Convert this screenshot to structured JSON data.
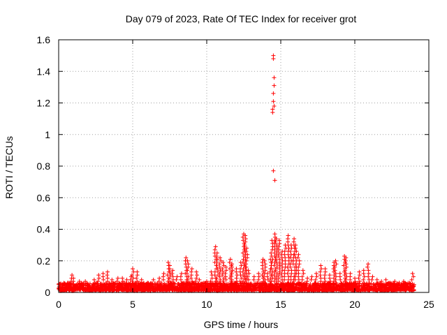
{
  "chart_data": {
    "type": "scatter",
    "title": "Day 079 of 2023, Rate Of TEC Index for receiver grot",
    "xlabel": "GPS time / hours",
    "ylabel": "ROTI / TECUs",
    "xlim": [
      0,
      25
    ],
    "ylim": [
      0,
      1.6
    ],
    "x_ticks": [
      0,
      5,
      10,
      15,
      20,
      25
    ],
    "y_ticks": [
      0,
      0.2,
      0.4,
      0.6,
      0.8,
      1,
      1.2,
      1.4,
      1.6
    ],
    "x_tick_labels": [
      "0",
      "5",
      "10",
      "15",
      "20",
      "25"
    ],
    "y_tick_labels": [
      "0",
      "0.2",
      "0.4",
      "0.6",
      "0.8",
      "1",
      "1.2",
      "1.4",
      "1.6"
    ],
    "grid": true,
    "marker": "+",
    "marker_color": "#ff0000",
    "baseline_band": {
      "x_range": [
        0,
        24
      ],
      "y_range": [
        0.01,
        0.06
      ],
      "description_hidden": true
    },
    "series": [
      {
        "values": [
          [
            0.05,
            0.04
          ],
          [
            0.3,
            0.05
          ],
          [
            0.6,
            0.06
          ],
          [
            0.9,
            0.11
          ],
          [
            1.0,
            0.09
          ],
          [
            1.4,
            0.07
          ],
          [
            1.8,
            0.07
          ],
          [
            2.4,
            0.08
          ],
          [
            2.7,
            0.11
          ],
          [
            3.0,
            0.12
          ],
          [
            3.3,
            0.13
          ],
          [
            3.6,
            0.08
          ],
          [
            4.0,
            0.09
          ],
          [
            4.3,
            0.09
          ],
          [
            4.6,
            0.08
          ],
          [
            4.9,
            0.1
          ],
          [
            5.0,
            0.15
          ],
          [
            5.3,
            0.13
          ],
          [
            5.6,
            0.08
          ],
          [
            6.0,
            0.06
          ],
          [
            6.4,
            0.08
          ],
          [
            6.8,
            0.09
          ],
          [
            7.1,
            0.12
          ],
          [
            7.4,
            0.19
          ],
          [
            7.5,
            0.17
          ],
          [
            7.7,
            0.14
          ],
          [
            8.0,
            0.1
          ],
          [
            8.3,
            0.12
          ],
          [
            8.6,
            0.22
          ],
          [
            8.7,
            0.2
          ],
          [
            9.0,
            0.15
          ],
          [
            9.3,
            0.13
          ],
          [
            9.5,
            0.08
          ],
          [
            9.8,
            0.06
          ],
          [
            10.0,
            0.07
          ],
          [
            10.3,
            0.13
          ],
          [
            10.6,
            0.29
          ],
          [
            10.7,
            0.25
          ],
          [
            10.9,
            0.22
          ],
          [
            11.1,
            0.19
          ],
          [
            11.3,
            0.16
          ],
          [
            11.6,
            0.21
          ],
          [
            11.7,
            0.18
          ],
          [
            12.0,
            0.15
          ],
          [
            12.3,
            0.19
          ],
          [
            12.5,
            0.37
          ],
          [
            12.6,
            0.36
          ],
          [
            12.7,
            0.28
          ],
          [
            12.8,
            0.14
          ],
          [
            13.2,
            0.1
          ],
          [
            13.5,
            0.12
          ],
          [
            13.8,
            0.21
          ],
          [
            13.9,
            0.2
          ],
          [
            14.1,
            0.12
          ],
          [
            14.3,
            0.21
          ],
          [
            14.4,
            0.33
          ],
          [
            14.5,
            1.5
          ],
          [
            14.5,
            1.48
          ],
          [
            14.55,
            1.36
          ],
          [
            14.55,
            1.31
          ],
          [
            14.5,
            1.26
          ],
          [
            14.5,
            1.21
          ],
          [
            14.45,
            1.16
          ],
          [
            14.45,
            1.14
          ],
          [
            14.55,
            1.18
          ],
          [
            14.5,
            0.77
          ],
          [
            14.6,
            0.71
          ],
          [
            14.6,
            0.37
          ],
          [
            14.7,
            0.34
          ],
          [
            14.9,
            0.33
          ],
          [
            15.1,
            0.26
          ],
          [
            15.3,
            0.3
          ],
          [
            15.5,
            0.36
          ],
          [
            15.7,
            0.3
          ],
          [
            15.9,
            0.34
          ],
          [
            16.0,
            0.3
          ],
          [
            16.2,
            0.24
          ],
          [
            16.5,
            0.14
          ],
          [
            16.8,
            0.09
          ],
          [
            17.1,
            0.1
          ],
          [
            17.4,
            0.12
          ],
          [
            17.7,
            0.17
          ],
          [
            18.0,
            0.15
          ],
          [
            18.3,
            0.11
          ],
          [
            18.6,
            0.19
          ],
          [
            18.7,
            0.2
          ],
          [
            19.0,
            0.12
          ],
          [
            19.3,
            0.23
          ],
          [
            19.4,
            0.22
          ],
          [
            19.7,
            0.12
          ],
          [
            20.0,
            0.09
          ],
          [
            20.3,
            0.13
          ],
          [
            20.6,
            0.14
          ],
          [
            20.9,
            0.18
          ],
          [
            21.2,
            0.1
          ],
          [
            21.5,
            0.08
          ],
          [
            21.8,
            0.07
          ],
          [
            22.1,
            0.08
          ],
          [
            22.4,
            0.06
          ],
          [
            22.7,
            0.07
          ],
          [
            23.0,
            0.06
          ],
          [
            23.3,
            0.07
          ],
          [
            23.6,
            0.06
          ],
          [
            23.9,
            0.12
          ],
          [
            24.0,
            0.05
          ]
        ]
      }
    ]
  }
}
